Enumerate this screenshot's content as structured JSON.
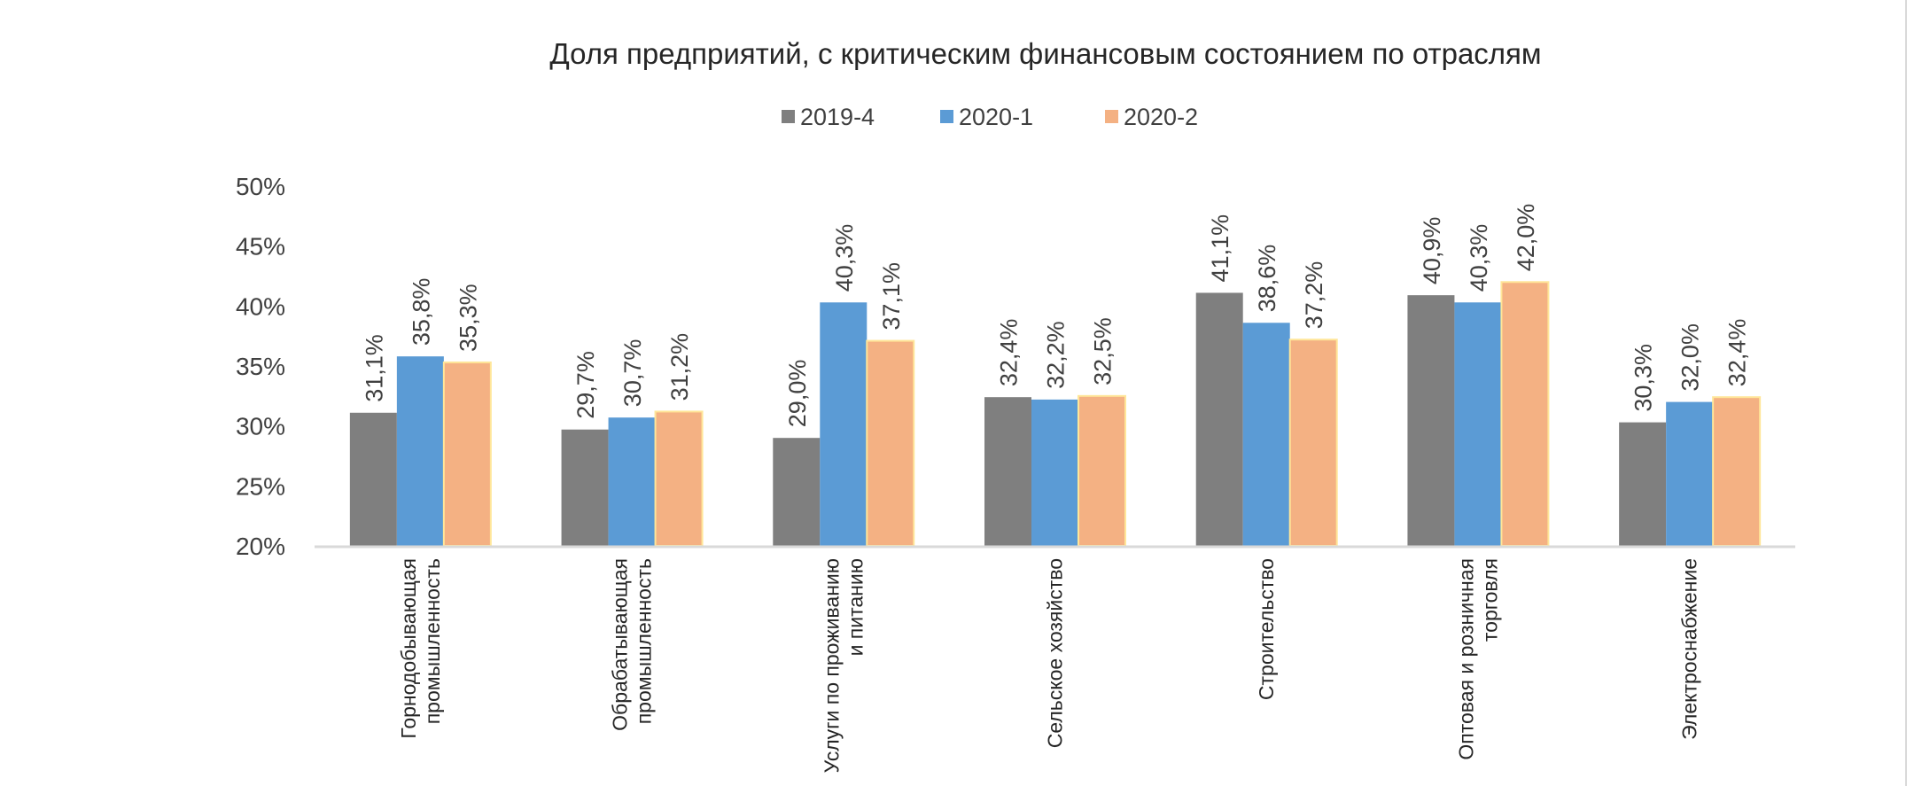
{
  "chart_data": {
    "type": "bar",
    "title": "Доля предприятий, с критическим финансовым состоянием по отраслям",
    "categories": [
      [
        "Горнодобывающая",
        "промышленность"
      ],
      [
        "Обрабатывающая",
        "промышленность"
      ],
      [
        "Услуги по проживанию",
        "и питанию"
      ],
      [
        "Сельское хозяйство"
      ],
      [
        "Строительство"
      ],
      [
        "Оптовая и розничная",
        "торговля"
      ],
      [
        "Электроснабжение"
      ]
    ],
    "series": [
      {
        "name": "2019-4",
        "color": "#7f7f7f",
        "values": [
          31.1,
          29.7,
          29.0,
          32.4,
          41.1,
          40.9,
          30.3
        ],
        "labels": [
          "31,1%",
          "29,7%",
          "29,0%",
          "32,4%",
          "41,1%",
          "40,9%",
          "30,3%"
        ]
      },
      {
        "name": "2020-1",
        "color": "#5b9bd5",
        "values": [
          35.8,
          30.7,
          40.3,
          32.2,
          38.6,
          40.3,
          32.0
        ],
        "labels": [
          "35,8%",
          "30,7%",
          "40,3%",
          "32,2%",
          "38,6%",
          "40,3%",
          "32,0%"
        ]
      },
      {
        "name": "2020-2",
        "color": "#f4b183",
        "values": [
          35.3,
          31.2,
          37.1,
          32.5,
          37.2,
          42.0,
          32.4
        ],
        "labels": [
          "35,3%",
          "31,2%",
          "37,1%",
          "32,5%",
          "37,2%",
          "42,0%",
          "32,4%"
        ]
      }
    ],
    "ylim": [
      20,
      50
    ],
    "yticks": [
      "20%",
      "25%",
      "30%",
      "35%",
      "40%",
      "45%",
      "50%"
    ],
    "grid": false,
    "legend": "top",
    "xlabel": "",
    "ylabel": ""
  }
}
